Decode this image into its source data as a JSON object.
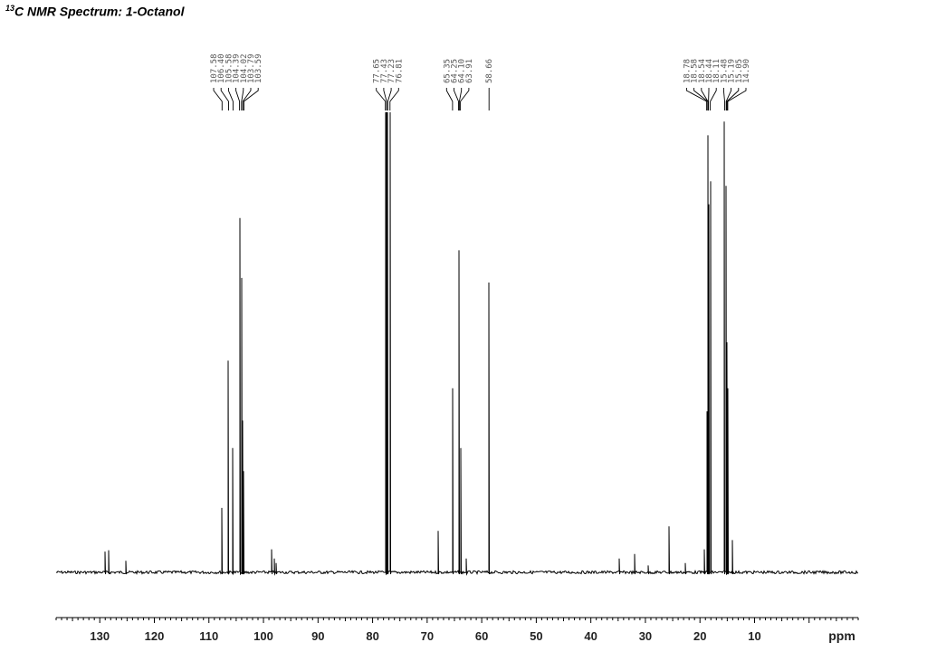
{
  "header": {
    "title_prefix": "13",
    "title_main": "C NMR Spectrum:  1-Octanol"
  },
  "chart_data": {
    "type": "line",
    "xlabel": "ppm",
    "x_reversed": true,
    "xlim": [
      138,
      -9
    ],
    "ylim": [
      0,
      1.0
    ],
    "grid": false,
    "x_ticks": [
      130,
      120,
      110,
      100,
      90,
      80,
      70,
      60,
      50,
      40,
      30,
      20,
      10
    ],
    "peak_label_groups": [
      {
        "labels": [
          "107.58",
          "106.40",
          "105.58",
          "104.39",
          "104.02",
          "103.79",
          "103.59"
        ]
      },
      {
        "labels": [
          "77.65",
          "77.43",
          "77.23",
          "76.81"
        ]
      },
      {
        "labels": [
          "65.35",
          "64.25",
          "64.10",
          "63.91"
        ]
      },
      {
        "labels": [
          "58.66"
        ]
      },
      {
        "labels": [
          "18.78",
          "18.58",
          "18.54",
          "18.44",
          "18.11",
          "15.48",
          "15.19",
          "15.05",
          "14.90"
        ]
      }
    ],
    "peaks": [
      {
        "x": 129.0,
        "y": 0.045
      },
      {
        "x": 128.4,
        "y": 0.048
      },
      {
        "x": 125.3,
        "y": 0.025
      },
      {
        "x": 107.58,
        "y": 0.14
      },
      {
        "x": 106.4,
        "y": 0.46
      },
      {
        "x": 105.58,
        "y": 0.27
      },
      {
        "x": 104.39,
        "y": 0.77
      },
      {
        "x": 104.02,
        "y": 0.64
      },
      {
        "x": 103.79,
        "y": 0.33
      },
      {
        "x": 103.59,
        "y": 0.22
      },
      {
        "x": 98.5,
        "y": 0.05
      },
      {
        "x": 98.0,
        "y": 0.03
      },
      {
        "x": 97.6,
        "y": 0.02
      },
      {
        "x": 77.65,
        "y": 1.0
      },
      {
        "x": 77.43,
        "y": 1.0
      },
      {
        "x": 77.23,
        "y": 1.0
      },
      {
        "x": 76.81,
        "y": 1.0
      },
      {
        "x": 68.0,
        "y": 0.09
      },
      {
        "x": 65.35,
        "y": 0.4
      },
      {
        "x": 64.25,
        "y": 0.3
      },
      {
        "x": 64.1,
        "y": 0.7
      },
      {
        "x": 63.91,
        "y": 0.27
      },
      {
        "x": 62.9,
        "y": 0.03
      },
      {
        "x": 58.66,
        "y": 0.63
      },
      {
        "x": 34.8,
        "y": 0.03
      },
      {
        "x": 32.0,
        "y": 0.04
      },
      {
        "x": 29.5,
        "y": 0.015
      },
      {
        "x": 25.6,
        "y": 0.1
      },
      {
        "x": 22.7,
        "y": 0.02
      },
      {
        "x": 19.2,
        "y": 0.05
      },
      {
        "x": 18.78,
        "y": 0.35
      },
      {
        "x": 18.58,
        "y": 0.9
      },
      {
        "x": 18.54,
        "y": 0.95
      },
      {
        "x": 18.44,
        "y": 0.8
      },
      {
        "x": 18.11,
        "y": 0.85
      },
      {
        "x": 15.48,
        "y": 0.98
      },
      {
        "x": 15.19,
        "y": 0.84
      },
      {
        "x": 15.05,
        "y": 0.5
      },
      {
        "x": 14.9,
        "y": 0.4
      },
      {
        "x": 14.0,
        "y": 0.07
      }
    ]
  }
}
